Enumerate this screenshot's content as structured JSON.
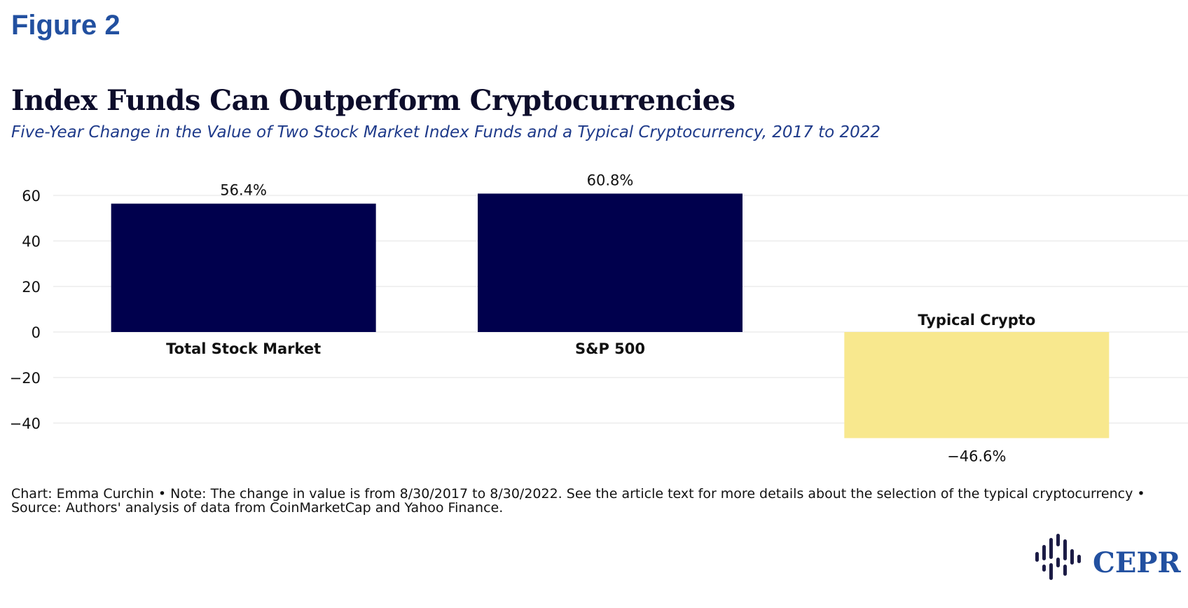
{
  "figure_label": "Figure 2",
  "title": "Index Funds Can Outperform Cryptocurrencies",
  "subtitle": "Five-Year Change in the Value of Two Stock Market Index Funds and a Typical Cryptocurrency, 2017 to 2022",
  "note": "Chart: Emma Curchin • Note: The change in value is from 8/30/2017 to 8/30/2022. See the article text for more details about the selection of the typical cryptocurrency • Source: Authors' analysis of data from CoinMarketCap and Yahoo Finance.",
  "logo": {
    "text": "CEPR",
    "icon": "cepr-logo-icon"
  },
  "colors": {
    "positive": "#00004d",
    "negative": "#f8e88e",
    "figure_label": "#2250a0",
    "subtitle": "#1e3a8a",
    "grid": "#e3e3e3"
  },
  "chart_data": {
    "type": "bar",
    "categories": [
      "Total Stock Market",
      "S&P 500",
      "Typical Crypto"
    ],
    "values": [
      56.4,
      60.8,
      -46.6
    ],
    "value_labels": [
      "56.4%",
      "60.8%",
      "−46.6%"
    ],
    "yticks": [
      60,
      40,
      20,
      0,
      -20,
      -40
    ],
    "ytick_labels": [
      "60",
      "40",
      "20",
      "0",
      "−20",
      "−40"
    ],
    "ylim": [
      -47,
      61
    ],
    "grid": true,
    "legend": "none"
  }
}
